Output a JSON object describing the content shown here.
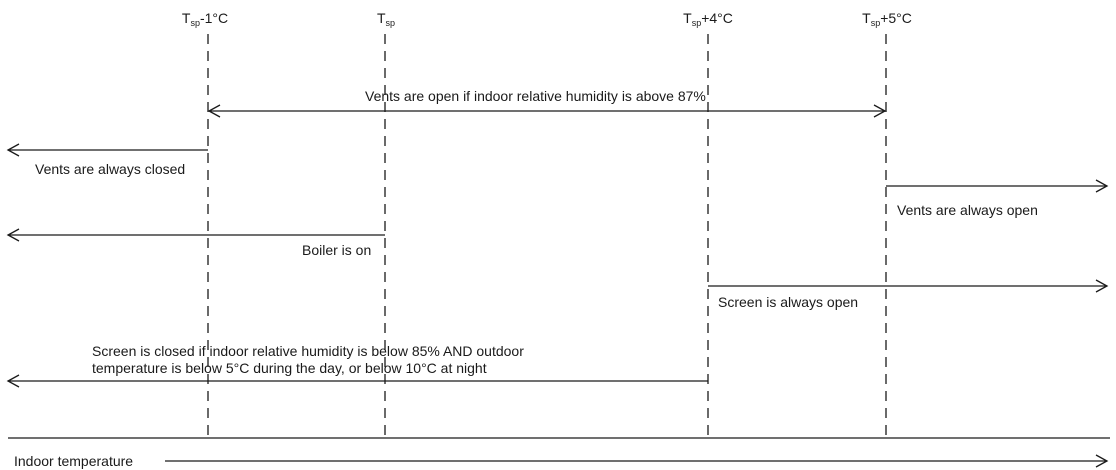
{
  "thresholds": [
    {
      "base": "T",
      "sub": "sp",
      "suffix": "-1°C"
    },
    {
      "base": "T",
      "sub": "sp",
      "suffix": ""
    },
    {
      "base": "T",
      "sub": "sp",
      "suffix": "+4°C"
    },
    {
      "base": "T",
      "sub": "sp",
      "suffix": "+5°C"
    }
  ],
  "rules": {
    "humidity_vents": "Vents are open if indoor relative humidity is above 87%",
    "vents_closed": "Vents are always closed",
    "vents_open": "Vents are always open",
    "boiler_on": "Boiler is on",
    "screen_open": "Screen is always open",
    "screen_closed_line1": "Screen is closed if indoor relative humidity is below 85% AND outdoor",
    "screen_closed_line2": "temperature is below 5°C during the day, or below 10°C at night"
  },
  "axis": {
    "label": "Indoor temperature"
  },
  "colors": {
    "line": "#1a1a1a",
    "background": "#ffffff"
  }
}
